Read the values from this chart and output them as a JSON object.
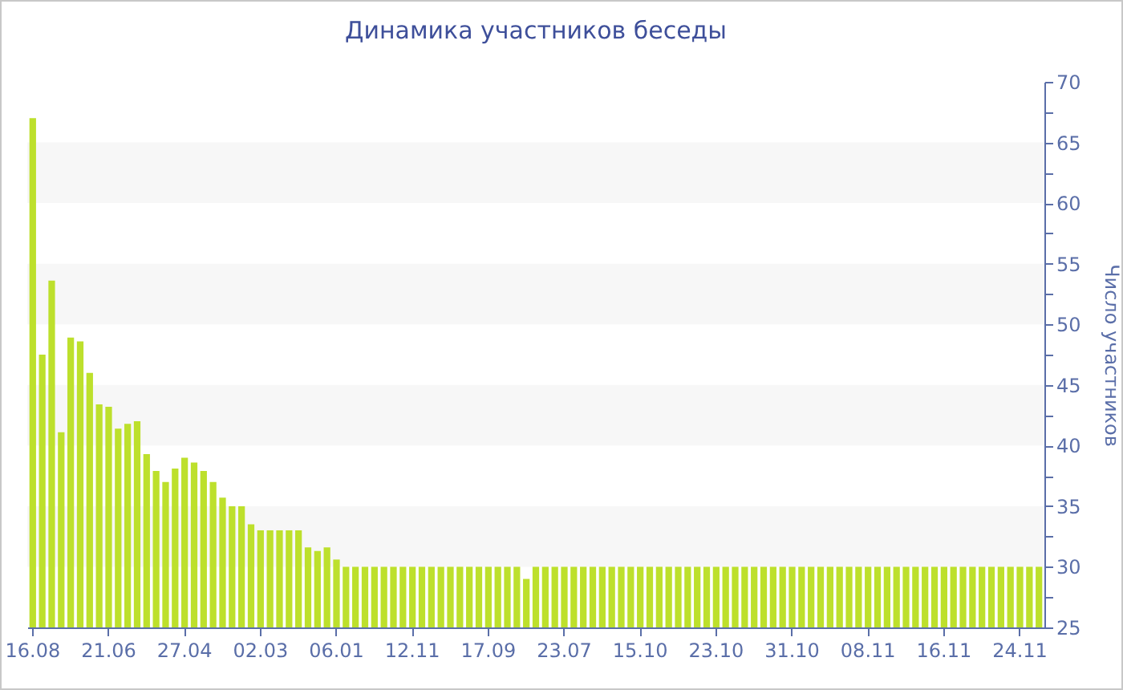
{
  "chart_data": {
    "type": "bar",
    "title": "Динамика участников беседы",
    "ylabel": "Число участников",
    "categories": [
      "16.08",
      null,
      null,
      null,
      null,
      null,
      null,
      null,
      "21.06",
      null,
      null,
      null,
      null,
      null,
      null,
      null,
      "27.04",
      null,
      null,
      null,
      null,
      null,
      null,
      null,
      "02.03",
      null,
      null,
      null,
      null,
      null,
      null,
      null,
      "06.01",
      null,
      null,
      null,
      null,
      null,
      null,
      null,
      "12.11",
      null,
      null,
      null,
      null,
      null,
      null,
      null,
      "17.09",
      null,
      null,
      null,
      null,
      null,
      null,
      null,
      "23.07",
      null,
      null,
      null,
      null,
      null,
      null,
      null,
      "15.10",
      null,
      null,
      null,
      null,
      null,
      null,
      null,
      "23.10",
      null,
      null,
      null,
      null,
      null,
      null,
      null,
      "31.10",
      null,
      null,
      null,
      null,
      null,
      null,
      null,
      "08.11",
      null,
      null,
      null,
      null,
      null,
      null,
      null,
      "16.11",
      null,
      null,
      null,
      null,
      null,
      null,
      null,
      "24.11",
      null,
      null
    ],
    "values": [
      67,
      47.5,
      53.6,
      41.1,
      48.9,
      48.6,
      46,
      43.4,
      43.2,
      41.4,
      41.8,
      42,
      39.3,
      37.9,
      37,
      38.1,
      39,
      38.6,
      37.9,
      37,
      35.7,
      35,
      35,
      33.5,
      33,
      33,
      33,
      33,
      33,
      31.6,
      31.3,
      31.6,
      30.6,
      30,
      30,
      30,
      30,
      30,
      30,
      30,
      30,
      30,
      30,
      30,
      30,
      30,
      30,
      30,
      30,
      30,
      30,
      30,
      29,
      30,
      30,
      30,
      30,
      30,
      30,
      30,
      30,
      30,
      30,
      30,
      30,
      30,
      30,
      30,
      30,
      30,
      30,
      30,
      30,
      30,
      30,
      30,
      30,
      30,
      30,
      30,
      30,
      30,
      30,
      30,
      30,
      30,
      30,
      30,
      30,
      30,
      30,
      30,
      30,
      30,
      30,
      30,
      30,
      30,
      30,
      30,
      30,
      30,
      30,
      30,
      30,
      30,
      30
    ],
    "color": "#bde02c",
    "ylim": [
      25,
      70
    ],
    "yticks": [
      25,
      {
        "value": 27.5,
        "label": null
      },
      30,
      {
        "value": 32.5,
        "label": null
      },
      35,
      {
        "value": 37.5,
        "label": null
      },
      40,
      {
        "value": 42.5,
        "label": null
      },
      45,
      {
        "value": 47.5,
        "label": null
      },
      50,
      {
        "value": 52.5,
        "label": null
      },
      55,
      {
        "value": 57.5,
        "label": null
      },
      60,
      {
        "value": 62.5,
        "label": null
      },
      65,
      {
        "value": 67.5,
        "label": null
      },
      70
    ],
    "bands": [
      {
        "axis": "y",
        "from": 30,
        "to": 35,
        "color": "#f7f7f7"
      },
      {
        "axis": "y",
        "from": 40,
        "to": 45,
        "color": "#f7f7f7"
      },
      {
        "axis": "y",
        "from": 50,
        "to": 55,
        "color": "#f7f7f7"
      },
      {
        "axis": "y",
        "from": 60,
        "to": 65,
        "color": "#f7f7f7"
      }
    ],
    "legend": false
  }
}
